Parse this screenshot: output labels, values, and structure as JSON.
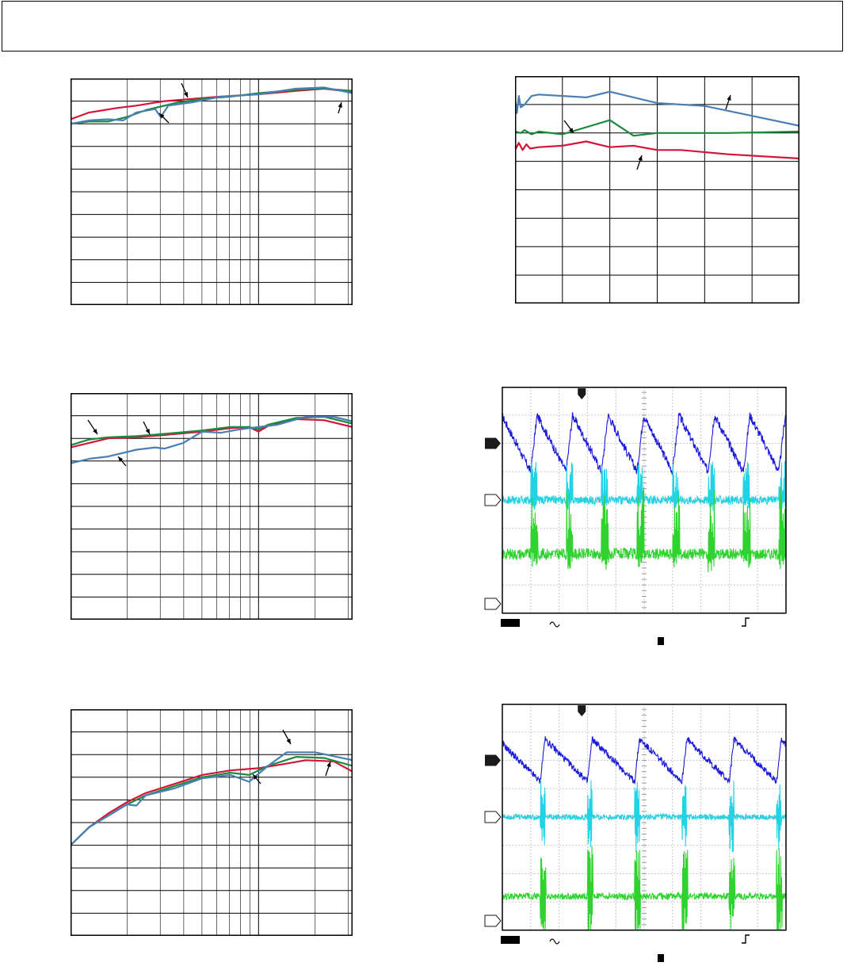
{
  "colors": {
    "red": "#d4143a",
    "green": "#1a8a3c",
    "blue": "#4a7fb5",
    "steel": "#5b86a8",
    "scope_ch1": "#1a1ad8",
    "scope_ch2": "#22d3e6",
    "scope_ch3": "#2fd22f"
  },
  "icons": {
    "trigger": "trigger-marker-icon",
    "ac_coupling": "ac-coupling-icon",
    "edge": "rising-edge-icon"
  },
  "chart_data": [
    {
      "type": "line",
      "axis": {
        "x_scale": "log",
        "x_decades": 1.5,
        "y_divisions": 10
      },
      "series": [
        {
          "color": "#d4143a",
          "points": [
            [
              0.0,
              8.2
            ],
            [
              0.1,
              8.5
            ],
            [
              0.25,
              8.7
            ],
            [
              0.35,
              8.8
            ],
            [
              0.5,
              9.0
            ],
            [
              0.65,
              9.1
            ],
            [
              0.8,
              9.2
            ],
            [
              1.0,
              9.3
            ],
            [
              1.2,
              9.45
            ],
            [
              1.35,
              9.55
            ],
            [
              1.5,
              9.4
            ]
          ]
        },
        {
          "color": "#1a8a3c",
          "points": [
            [
              0.0,
              8.0
            ],
            [
              0.1,
              8.1
            ],
            [
              0.2,
              8.1
            ],
            [
              0.3,
              8.3
            ],
            [
              0.4,
              8.6
            ],
            [
              0.55,
              8.9
            ],
            [
              0.7,
              9.1
            ],
            [
              0.85,
              9.2
            ],
            [
              1.0,
              9.35
            ],
            [
              1.2,
              9.5
            ],
            [
              1.35,
              9.55
            ],
            [
              1.5,
              9.45
            ]
          ]
        },
        {
          "color": "#4a7fb5",
          "points": [
            [
              0.0,
              8.0
            ],
            [
              0.1,
              8.15
            ],
            [
              0.2,
              8.2
            ],
            [
              0.28,
              8.15
            ],
            [
              0.35,
              8.5
            ],
            [
              0.45,
              8.65
            ],
            [
              0.48,
              8.3
            ],
            [
              0.52,
              8.8
            ],
            [
              0.65,
              8.95
            ],
            [
              0.8,
              9.2
            ],
            [
              1.0,
              9.3
            ],
            [
              1.2,
              9.55
            ],
            [
              1.35,
              9.6
            ],
            [
              1.5,
              9.35
            ]
          ]
        }
      ]
    },
    {
      "type": "line",
      "axis": {
        "x_divisions": 6,
        "y_divisions": 8
      },
      "series": [
        {
          "color": "#4a7fb5",
          "points": [
            [
              0.0,
              7.2
            ],
            [
              0.04,
              6.7
            ],
            [
              0.08,
              7.3
            ],
            [
              0.12,
              6.9
            ],
            [
              0.2,
              7.0
            ],
            [
              0.35,
              7.3
            ],
            [
              0.5,
              7.35
            ],
            [
              1.5,
              7.25
            ],
            [
              2.0,
              7.45
            ],
            [
              3.0,
              7.05
            ],
            [
              4.0,
              6.95
            ],
            [
              5.0,
              6.6
            ],
            [
              6.0,
              6.25
            ]
          ]
        },
        {
          "color": "#1a8a3c",
          "points": [
            [
              0.0,
              6.05
            ],
            [
              0.12,
              6.0
            ],
            [
              0.2,
              6.1
            ],
            [
              0.35,
              5.95
            ],
            [
              0.5,
              6.05
            ],
            [
              1.0,
              5.95
            ],
            [
              2.0,
              6.45
            ],
            [
              2.5,
              5.9
            ],
            [
              3.0,
              6.0
            ],
            [
              4.5,
              6.0
            ],
            [
              6.0,
              6.05
            ]
          ]
        },
        {
          "color": "#d4143a",
          "points": [
            [
              0.0,
              5.4
            ],
            [
              0.08,
              5.65
            ],
            [
              0.16,
              5.4
            ],
            [
              0.24,
              5.6
            ],
            [
              0.32,
              5.45
            ],
            [
              0.5,
              5.5
            ],
            [
              1.0,
              5.55
            ],
            [
              1.5,
              5.7
            ],
            [
              2.0,
              5.5
            ],
            [
              2.5,
              5.55
            ],
            [
              3.0,
              5.4
            ],
            [
              3.5,
              5.4
            ],
            [
              4.5,
              5.25
            ],
            [
              6.0,
              5.1
            ]
          ]
        }
      ]
    },
    {
      "type": "line",
      "axis": {
        "x_scale": "log",
        "x_decades": 1.5,
        "y_divisions": 10
      },
      "series": [
        {
          "color": "#d4143a",
          "points": [
            [
              0.0,
              7.6
            ],
            [
              0.1,
              7.8
            ],
            [
              0.2,
              8.0
            ],
            [
              0.35,
              8.05
            ],
            [
              0.5,
              8.15
            ],
            [
              0.7,
              8.3
            ],
            [
              0.85,
              8.45
            ],
            [
              0.95,
              8.5
            ],
            [
              1.0,
              8.3
            ],
            [
              1.05,
              8.55
            ],
            [
              1.2,
              8.85
            ],
            [
              1.35,
              8.8
            ],
            [
              1.5,
              8.5
            ]
          ]
        },
        {
          "color": "#1a8a3c",
          "points": [
            [
              0.0,
              7.7
            ],
            [
              0.1,
              7.95
            ],
            [
              0.2,
              8.05
            ],
            [
              0.35,
              8.1
            ],
            [
              0.5,
              8.2
            ],
            [
              0.7,
              8.35
            ],
            [
              0.85,
              8.5
            ],
            [
              0.95,
              8.5
            ],
            [
              1.0,
              8.4
            ],
            [
              1.05,
              8.6
            ],
            [
              1.2,
              8.9
            ],
            [
              1.35,
              8.95
            ],
            [
              1.5,
              8.65
            ]
          ]
        },
        {
          "color": "#4a7fb5",
          "points": [
            [
              0.0,
              6.9
            ],
            [
              0.1,
              7.1
            ],
            [
              0.2,
              7.2
            ],
            [
              0.35,
              7.5
            ],
            [
              0.45,
              7.6
            ],
            [
              0.5,
              7.55
            ],
            [
              0.6,
              7.8
            ],
            [
              0.7,
              8.3
            ],
            [
              0.8,
              8.25
            ],
            [
              0.9,
              8.4
            ],
            [
              1.0,
              8.5
            ],
            [
              1.1,
              8.6
            ],
            [
              1.25,
              8.95
            ],
            [
              1.4,
              8.95
            ],
            [
              1.5,
              8.75
            ]
          ]
        }
      ]
    },
    {
      "type": "line",
      "axis": {
        "x_scale": "log",
        "x_decades": 1.5,
        "y_divisions": 10
      },
      "series": [
        {
          "color": "#d4143a",
          "points": [
            [
              0.0,
              4.0
            ],
            [
              0.1,
              4.8
            ],
            [
              0.2,
              5.4
            ],
            [
              0.3,
              5.9
            ],
            [
              0.4,
              6.3
            ],
            [
              0.55,
              6.7
            ],
            [
              0.7,
              7.1
            ],
            [
              0.85,
              7.3
            ],
            [
              1.0,
              7.4
            ],
            [
              1.15,
              7.6
            ],
            [
              1.25,
              7.75
            ],
            [
              1.4,
              7.7
            ],
            [
              1.5,
              7.25
            ]
          ]
        },
        {
          "color": "#1a8a3c",
          "points": [
            [
              0.0,
              4.0
            ],
            [
              0.1,
              4.8
            ],
            [
              0.2,
              5.3
            ],
            [
              0.3,
              5.8
            ],
            [
              0.4,
              6.2
            ],
            [
              0.55,
              6.6
            ],
            [
              0.7,
              7.0
            ],
            [
              0.85,
              7.2
            ],
            [
              0.95,
              7.1
            ],
            [
              1.05,
              7.5
            ],
            [
              1.2,
              7.9
            ],
            [
              1.35,
              7.85
            ],
            [
              1.5,
              7.5
            ]
          ]
        },
        {
          "color": "#4a7fb5",
          "points": [
            [
              0.0,
              4.0
            ],
            [
              0.1,
              4.8
            ],
            [
              0.2,
              5.3
            ],
            [
              0.3,
              5.8
            ],
            [
              0.35,
              5.75
            ],
            [
              0.4,
              6.2
            ],
            [
              0.55,
              6.5
            ],
            [
              0.7,
              6.95
            ],
            [
              0.85,
              7.1
            ],
            [
              0.95,
              6.8
            ],
            [
              1.05,
              7.5
            ],
            [
              1.15,
              8.1
            ],
            [
              1.3,
              8.1
            ],
            [
              1.5,
              7.75
            ]
          ]
        }
      ]
    },
    {
      "type": "line",
      "panel": "scope",
      "axis": {
        "x_divisions": 10,
        "y_divisions": 8
      },
      "trigger_position_div": 2.8,
      "channels": [
        {
          "color": "#1a1ad8",
          "waveform": "sawtooth-up",
          "periods": 8,
          "center_div": 6.0,
          "amplitude_div": 1.0,
          "noise_div": 0.15
        },
        {
          "color": "#22d3e6",
          "waveform": "burst",
          "periods": 8,
          "center_div": 4.0,
          "amplitude_div": 1.05,
          "noise_div": 0.15
        },
        {
          "color": "#2fd22f",
          "waveform": "burst-wide",
          "periods": 8,
          "center_div": 2.1,
          "amplitude_div": 1.8,
          "noise_div": 0.2
        }
      ]
    },
    {
      "type": "line",
      "panel": "scope",
      "axis": {
        "x_divisions": 10,
        "y_divisions": 8
      },
      "trigger_position_div": 2.8,
      "channels": [
        {
          "color": "#1a1ad8",
          "waveform": "sawtooth-down",
          "periods": 6,
          "center_div": 6.0,
          "amplitude_div": 0.75,
          "noise_div": 0.12
        },
        {
          "color": "#22d3e6",
          "waveform": "spike",
          "periods": 6,
          "center_div": 4.0,
          "amplitude_div": 1.3,
          "noise_div": 0.1
        },
        {
          "color": "#2fd22f",
          "waveform": "spike-wide",
          "periods": 6,
          "center_div": 1.2,
          "amplitude_div": 1.8,
          "noise_div": 0.12
        }
      ]
    }
  ]
}
